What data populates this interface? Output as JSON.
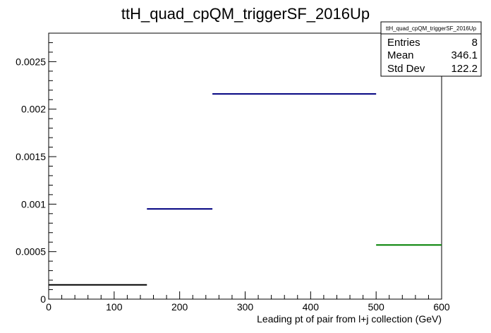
{
  "chart_data": {
    "type": "bar",
    "title": "ttH_quad_cpQM_triggerSF_2016Up",
    "xlabel": "Leading pt of pair from l+j collection (GeV)",
    "ylabel": "",
    "xlim": [
      0,
      600
    ],
    "ylim": [
      0,
      0.0028
    ],
    "x_ticks": [
      0,
      100,
      200,
      300,
      400,
      500,
      600
    ],
    "x_tick_labels": [
      "0",
      "100",
      "200",
      "300",
      "400",
      "500",
      "600"
    ],
    "y_ticks": [
      0,
      0.0005,
      0.001,
      0.0015,
      0.002,
      0.0025
    ],
    "y_tick_labels": [
      "0",
      "0.0005",
      "0.001",
      "0.0015",
      "0.002",
      "0.0025"
    ],
    "grid": false,
    "bins": [
      {
        "x_low": 0,
        "x_high": 150,
        "value": 0.00015,
        "color": "#000000"
      },
      {
        "x_low": 150,
        "x_high": 250,
        "value": 0.00095,
        "color": "#000080"
      },
      {
        "x_low": 250,
        "x_high": 500,
        "value": 0.00216,
        "color": "#000080"
      },
      {
        "x_low": 500,
        "x_high": 600,
        "value": 0.00057,
        "color": "#008000"
      }
    ],
    "stats_box": {
      "title": "ttH_quad_cpQM_triggerSF_2016Up",
      "rows": [
        {
          "label": "Entries",
          "value": "8"
        },
        {
          "label": "Mean",
          "value": "346.1"
        },
        {
          "label": "Std Dev",
          "value": "122.2"
        }
      ],
      "position": "top-right"
    }
  }
}
